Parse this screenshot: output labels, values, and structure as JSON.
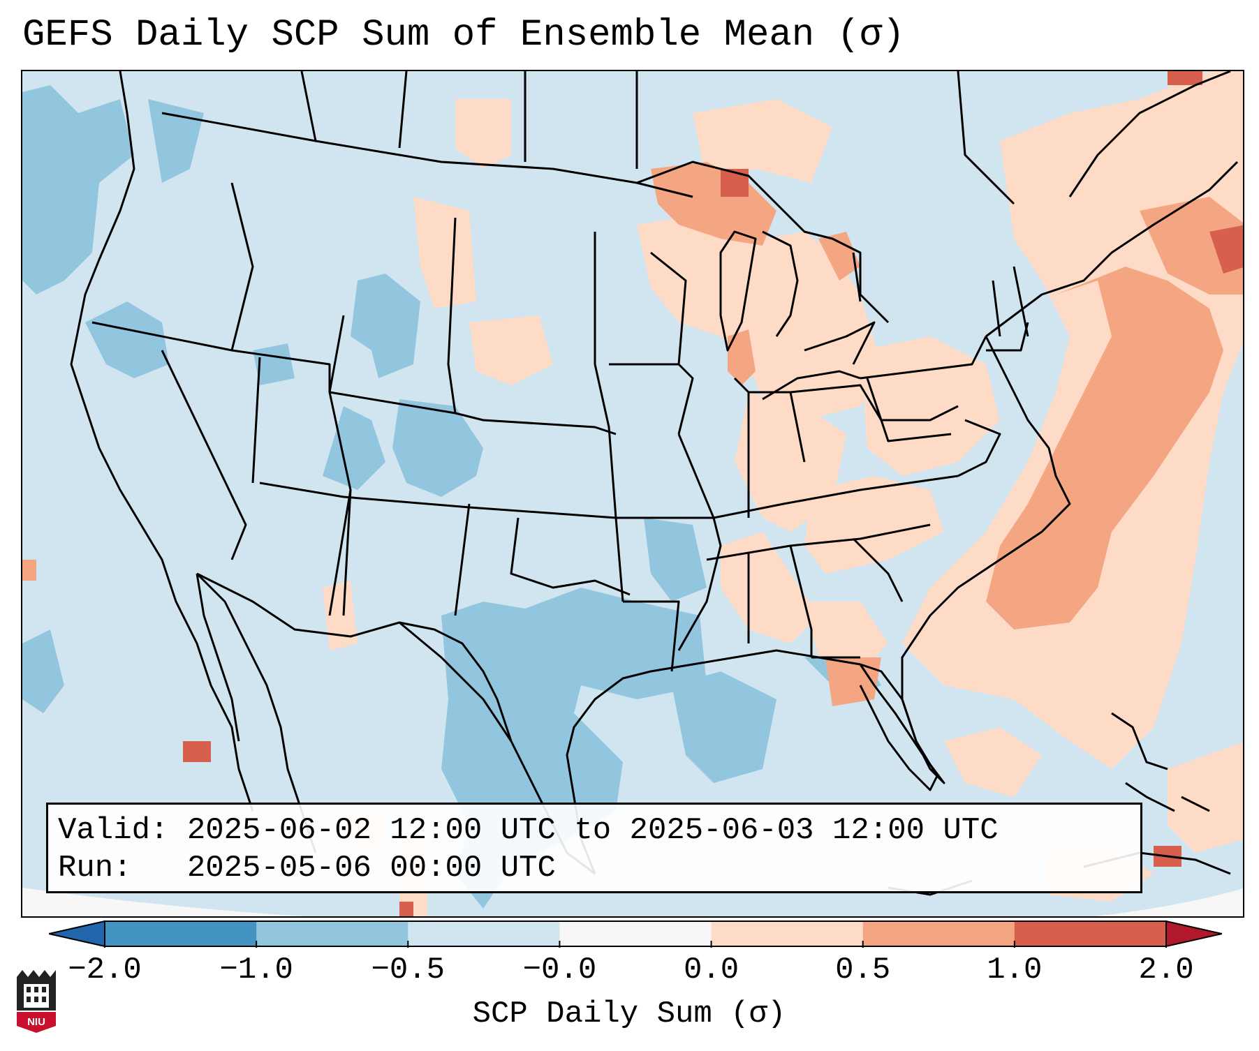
{
  "header": {
    "title": "GEFS Daily SCP Sum of Ensemble Mean (σ)"
  },
  "info": {
    "valid_label": "Valid:",
    "valid_value": "2025-06-02 12:00 UTC to 2025-06-03 12:00 UTC",
    "run_label": "Run:",
    "run_value": "2025-05-06 00:00 UTC"
  },
  "colorbar": {
    "label": "SCP Daily Sum (σ)",
    "ticks": [
      "−2.0",
      "−1.0",
      "−0.5",
      "−0.0",
      "0.0",
      "0.5",
      "1.0",
      "2.0"
    ],
    "bins": [
      {
        "color": "#4393c3"
      },
      {
        "color": "#92c5de"
      },
      {
        "color": "#d1e5f0"
      },
      {
        "color": "#f7f7f7"
      },
      {
        "color": "#fddbc7"
      },
      {
        "color": "#f4a582"
      },
      {
        "color": "#d6604d"
      }
    ],
    "under_color": "#2166ac",
    "over_color": "#b2182b"
  },
  "logo": {
    "text": "NIU"
  }
}
